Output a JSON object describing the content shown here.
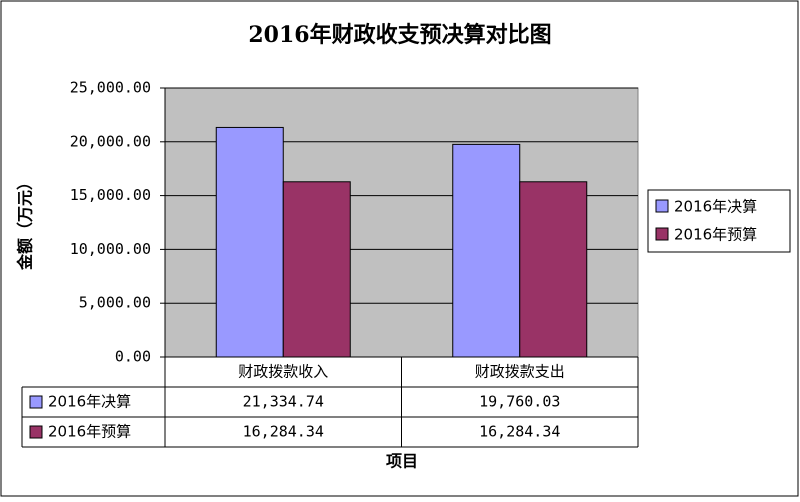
{
  "chart_data": {
    "type": "bar",
    "title": "2016年财政收支预决算对比图",
    "y_label": "金额（万元）",
    "x_label": "项目",
    "categories": [
      "财政拨款收入",
      "财政拨款支出"
    ],
    "series": [
      {
        "name": "2016年决算",
        "color": "#9999ff",
        "values": [
          21334.74,
          19760.03
        ],
        "value_labels": [
          "21,334.74",
          "19,760.03"
        ]
      },
      {
        "name": "2016年预算",
        "color": "#993366",
        "values": [
          16284.34,
          16284.34
        ],
        "value_labels": [
          "16,284.34",
          "16,284.34"
        ]
      }
    ],
    "ylim": [
      0,
      25000
    ],
    "yticks": [
      {
        "value": 0,
        "label": "0.00"
      },
      {
        "value": 5000,
        "label": "5,000.00"
      },
      {
        "value": 10000,
        "label": "10,000.00"
      },
      {
        "value": 15000,
        "label": "15,000.00"
      },
      {
        "value": 20000,
        "label": "20,000.00"
      },
      {
        "value": 25000,
        "label": "25,000.00"
      }
    ],
    "grid": true,
    "legend": "right"
  }
}
